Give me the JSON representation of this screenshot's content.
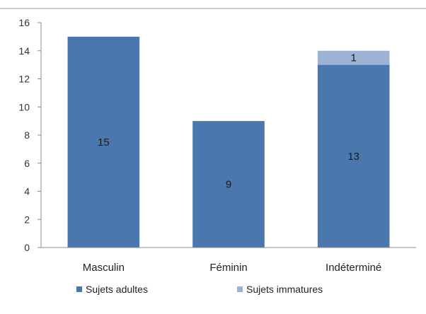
{
  "chart_data": {
    "type": "bar",
    "stacked": true,
    "categories": [
      "Masculin",
      "Féminin",
      "Indéterminé"
    ],
    "series": [
      {
        "name": "Sujets adultes",
        "values": [
          15,
          9,
          13
        ],
        "color": "#4a77ad"
      },
      {
        "name": "Sujets immatures",
        "values": [
          0,
          0,
          1
        ],
        "color": "#9db3d6"
      }
    ],
    "data_labels": [
      [
        "15",
        "9",
        "13"
      ],
      [
        null,
        null,
        "1"
      ]
    ],
    "title": "",
    "xlabel": "",
    "ylabel": "",
    "ylim": [
      0,
      16
    ],
    "yticks": [
      0,
      2,
      4,
      6,
      8,
      10,
      12,
      14,
      16
    ],
    "grid": false,
    "legend_position": "bottom"
  }
}
